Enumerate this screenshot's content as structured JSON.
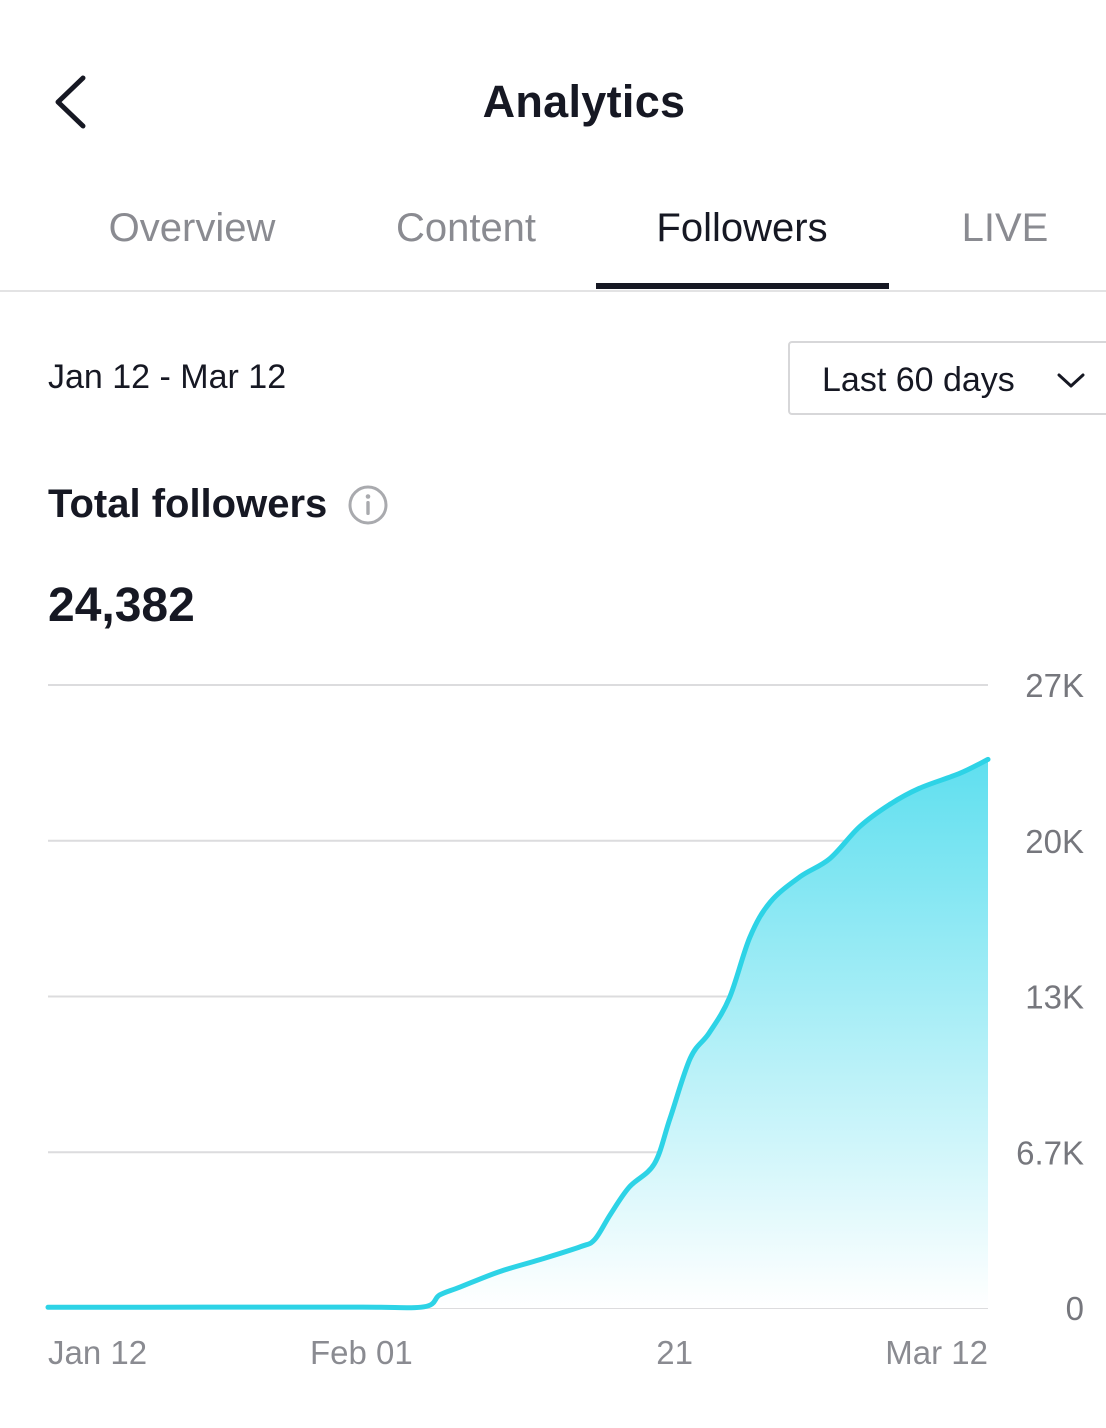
{
  "header": {
    "title": "Analytics",
    "back_icon": "chevron-left-icon"
  },
  "tabs": [
    {
      "label": "Overview",
      "active": false
    },
    {
      "label": "Content",
      "active": false
    },
    {
      "label": "Followers",
      "active": true
    },
    {
      "label": "LIVE",
      "active": false
    }
  ],
  "date_range": "Jan 12 - Mar 12",
  "period_select": {
    "value": "Last 60 days",
    "icon": "chevron-down-icon"
  },
  "metric": {
    "label": "Total followers",
    "info_icon": "info-icon",
    "value": "24,382"
  },
  "colors": {
    "line": "#2dd3e6",
    "fill_top": "#5fdfef",
    "grid": "#dcdcde"
  },
  "chart_data": {
    "type": "area",
    "title": "Total followers",
    "xlabel": "",
    "ylabel": "",
    "x_ticks": [
      {
        "day": 0,
        "label": "Jan 12"
      },
      {
        "day": 20,
        "label": "Feb 01"
      },
      {
        "day": 40,
        "label": "21"
      },
      {
        "day": 60,
        "label": "Mar 12"
      }
    ],
    "y_ticks": [
      {
        "value": 0,
        "label": "0"
      },
      {
        "value": 6700,
        "label": "6.7K"
      },
      {
        "value": 13400,
        "label": "13K"
      },
      {
        "value": 20100,
        "label": "20K"
      },
      {
        "value": 26800,
        "label": "27K"
      }
    ],
    "ylim": [
      0,
      26800
    ],
    "xlim": [
      0,
      60
    ],
    "grid": true,
    "points": [
      [
        0,
        30
      ],
      [
        10,
        35
      ],
      [
        20,
        40
      ],
      [
        24,
        50
      ],
      [
        25,
        560
      ],
      [
        26.3,
        900
      ],
      [
        28.8,
        1560
      ],
      [
        31.4,
        2080
      ],
      [
        34,
        2640
      ],
      [
        34.9,
        2950
      ],
      [
        35.9,
        4030
      ],
      [
        37.1,
        5200
      ],
      [
        38.7,
        6200
      ],
      [
        39.7,
        8150
      ],
      [
        41,
        10750
      ],
      [
        42.2,
        11830
      ],
      [
        43.5,
        13350
      ],
      [
        44.8,
        15950
      ],
      [
        46.1,
        17460
      ],
      [
        48,
        18550
      ],
      [
        49.9,
        19330
      ],
      [
        51.8,
        20700
      ],
      [
        53.7,
        21650
      ],
      [
        55.6,
        22350
      ],
      [
        58.2,
        23000
      ],
      [
        60,
        23600
      ]
    ]
  }
}
